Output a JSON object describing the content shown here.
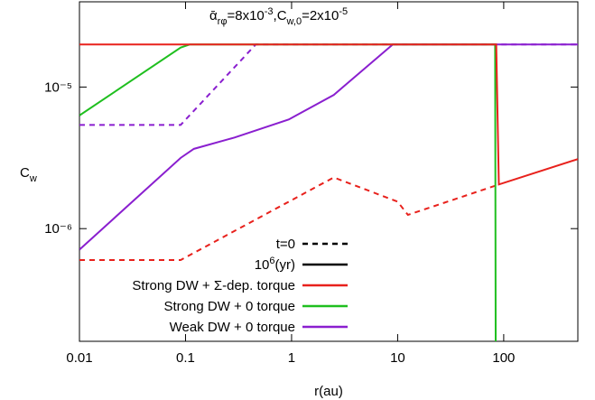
{
  "chart_data": {
    "type": "line",
    "annotation": [
      "ᾱ",
      "rφ",
      "=8x10",
      "-3",
      ",C",
      "w,0",
      "=2x10",
      "-5"
    ],
    "xlabel": "r(au)",
    "ylabel": [
      "C",
      "w"
    ],
    "xscale": "log",
    "yscale": "log",
    "xlim": [
      0.01,
      500
    ],
    "ylim": [
      1.6e-07,
      4e-05
    ],
    "xticks": [
      0.01,
      0.1,
      1,
      10,
      100
    ],
    "yticks": [
      {
        "value": 1e-06,
        "label": "10⁻⁶"
      },
      {
        "value": 1e-05,
        "label": "10⁻⁵"
      }
    ],
    "grid": false,
    "legend_position": "lower-center",
    "legend": [
      {
        "label": [
          "t=0"
        ],
        "color": "#000000",
        "dashed": true
      },
      {
        "label": [
          "10",
          "6",
          "(yr)"
        ],
        "color": "#000000",
        "dashed": false
      },
      {
        "label": [
          "Strong DW + Σ-dep. torque"
        ],
        "color": "#e8211c",
        "dashed": false
      },
      {
        "label": [
          "Strong DW + 0 torque"
        ],
        "color": "#1fbf1f",
        "dashed": false
      },
      {
        "label": [
          "Weak DW + 0 torque"
        ],
        "color": "#8a1fcf",
        "dashed": false
      }
    ],
    "series": [
      {
        "color": "#e8211c",
        "dashed": true,
        "x": [
          0.01,
          0.09,
          2.5,
          10,
          12.5,
          90
        ],
        "values": [
          6e-07,
          6e-07,
          2.3e-06,
          1.55e-06,
          1.25e-06,
          2.05e-06
        ]
      },
      {
        "color": "#8a1fcf",
        "dashed": true,
        "x": [
          0.01,
          0.09,
          0.46,
          500
        ],
        "values": [
          5.4e-06,
          5.4e-06,
          2e-05,
          2e-05
        ]
      },
      {
        "color": "#8a1fcf",
        "dashed": false,
        "x": [
          0.01,
          0.09,
          0.12,
          0.29,
          0.94,
          2.5,
          9,
          500
        ],
        "values": [
          7.1e-07,
          3.16e-06,
          3.66e-06,
          4.4e-06,
          5.9e-06,
          8.8e-06,
          2e-05,
          2e-05
        ]
      },
      {
        "color": "#1fbf1f",
        "dashed": false,
        "x": [
          0.01,
          0.09,
          0.11,
          83,
          84
        ],
        "values": [
          6.3e-06,
          1.9e-05,
          2e-05,
          2e-05,
          1.6e-07
        ]
      },
      {
        "color": "#e8211c",
        "dashed": false,
        "x": [
          0.01,
          85,
          90,
          500
        ],
        "values": [
          2e-05,
          2e-05,
          2.05e-06,
          3.1e-06
        ]
      }
    ]
  }
}
